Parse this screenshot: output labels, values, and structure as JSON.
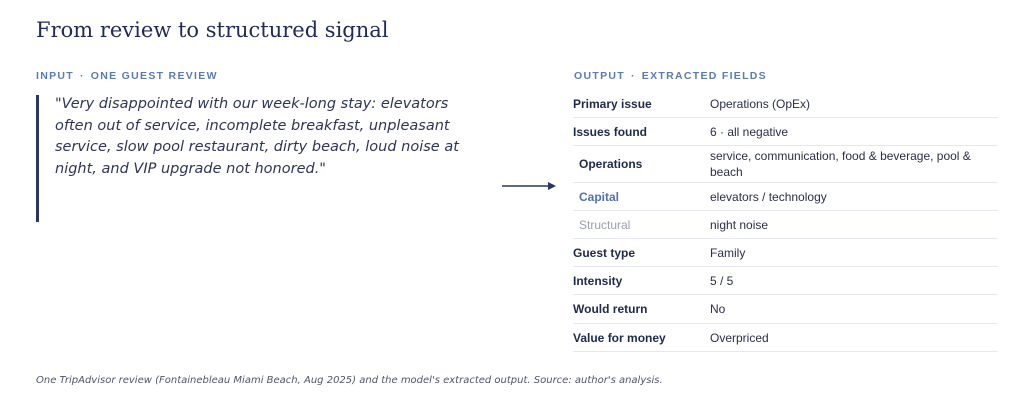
{
  "title": "From review to structured signal",
  "input": {
    "label_a": "INPUT",
    "sep": "·",
    "label_b": "ONE GUEST REVIEW",
    "quote": "\"Very disappointed with our week-long stay: elevators often out of service, incomplete breakfast, unpleasant service, slow pool restaurant, dirty beach, loud noise at night, and VIP upgrade not honored.\""
  },
  "output": {
    "label_a": "OUTPUT",
    "sep": "·",
    "label_b": "EXTRACTED FIELDS",
    "rows": [
      {
        "key": "Primary issue",
        "value": "Operations (OpEx)"
      },
      {
        "key": "Issues found",
        "value": "6  ·  all negative"
      },
      {
        "key": "Operations",
        "value": "service, communication, food & beverage, pool & beach"
      },
      {
        "key": "Capital",
        "value": "elevators / technology"
      },
      {
        "key": "Structural",
        "value": "night noise"
      },
      {
        "key": "Guest type",
        "value": "Family"
      },
      {
        "key": "Intensity",
        "value": "5 / 5"
      },
      {
        "key": "Would return",
        "value": "No"
      },
      {
        "key": "Value for money",
        "value": "Overpriced"
      }
    ]
  },
  "colors": {
    "navy": "#1f2a5a",
    "accent_blue": "#5b7bb8",
    "capital_blue": "#4f72b8",
    "structural_gray": "#9aa0ad"
  },
  "footer": "One TripAdvisor review (Fontainebleau Miami Beach, Aug 2025) and the model's extracted output.  Source: author's analysis."
}
